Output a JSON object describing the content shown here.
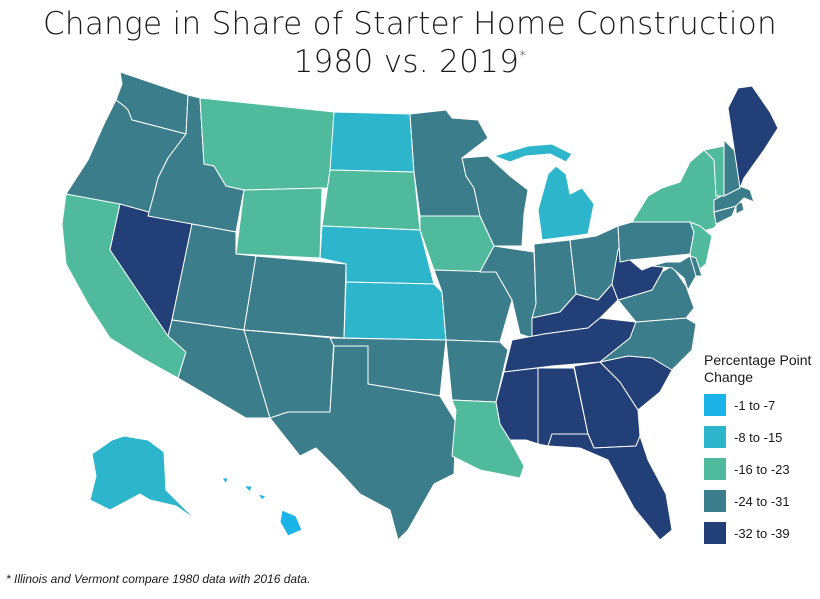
{
  "title": {
    "line1": "Change in Share of Starter Home Construction",
    "line2": "1980 vs. 2019",
    "asterisk": "*"
  },
  "legend": {
    "title": "Percentage Point Change",
    "items": [
      {
        "label": "-1 to -7",
        "color": "#1ab4e8"
      },
      {
        "label": "-8 to -15",
        "color": "#2db6cb"
      },
      {
        "label": "-16 to -23",
        "color": "#4fbb9c"
      },
      {
        "label": "-24 to -31",
        "color": "#3b7d8b"
      },
      {
        "label": "-32 to -39",
        "color": "#233f77"
      }
    ]
  },
  "footnote": "* Illinois and Vermont compare 1980 data with 2016 data.",
  "states": {
    "WA": 3,
    "OR": 3,
    "CA": 2,
    "NV": 4,
    "ID": 3,
    "MT": 2,
    "WY": 2,
    "UT": 3,
    "AZ": 3,
    "CO": 3,
    "NM": 3,
    "ND": 1,
    "SD": 2,
    "NE": 1,
    "KS": 1,
    "OK": 3,
    "TX": 3,
    "MN": 3,
    "IA": 2,
    "MO": 3,
    "AR": 3,
    "LA": 2,
    "WI": 3,
    "IL": 3,
    "MI": 1,
    "IN": 3,
    "OH": 3,
    "KY": 4,
    "TN": 4,
    "MS": 4,
    "AL": 4,
    "GA": 4,
    "FL": 4,
    "SC": 4,
    "NC": 3,
    "VA": 3,
    "WV": 4,
    "PA": 3,
    "NY": 2,
    "NJ": 2,
    "DE": 3,
    "MD": 3,
    "CT": 3,
    "RI": 3,
    "MA": 3,
    "VT": 2,
    "NH": 3,
    "ME": 4,
    "AK": 1,
    "HI": 0
  }
}
